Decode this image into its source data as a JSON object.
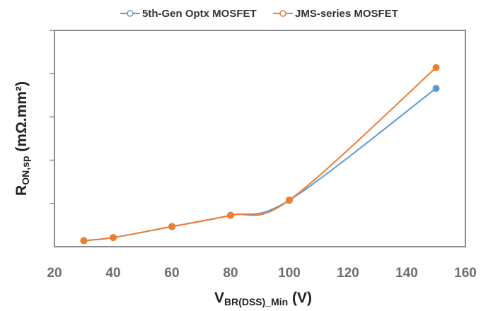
{
  "chart_data": {
    "type": "line",
    "title": "",
    "x": [
      30,
      40,
      60,
      80,
      100,
      150
    ],
    "series": [
      {
        "name": "5th-Gen Optx MOSFET",
        "color": "#5b9bd5",
        "values": [
          0.28,
          0.42,
          0.93,
          1.45,
          2.15,
          7.32
        ]
      },
      {
        "name": "JMS-series MOSFET",
        "color": "#ed7d31",
        "values": [
          0.28,
          0.42,
          0.93,
          1.45,
          2.15,
          8.28
        ]
      }
    ],
    "xlim": [
      20,
      160
    ],
    "ylim": [
      0,
      10
    ],
    "x_ticks": [
      20,
      40,
      60,
      80,
      100,
      120,
      140,
      160
    ],
    "x_tick_labels": [
      "20",
      "40",
      "60",
      "80",
      "100",
      "120",
      "140",
      "160"
    ],
    "y_ticks": [
      2,
      4,
      6,
      8,
      10
    ],
    "y_tick_labels": [],
    "xlabel": {
      "main": "V",
      "sub": "BR(DSS)_Min",
      "tail": " (V)"
    },
    "ylabel": {
      "main": "R",
      "sub": "ON,sp",
      "tail": " (mΩ.mm²)"
    },
    "legend_position": "top",
    "grid": false
  }
}
